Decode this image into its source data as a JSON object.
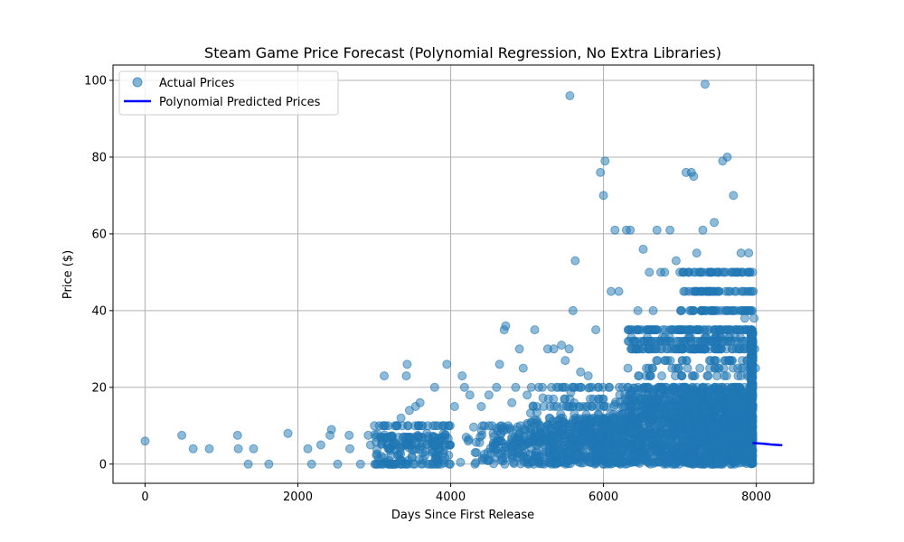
{
  "chart_data": {
    "type": "scatter",
    "title": "Steam Game Price Forecast (Polynomial Regression, No Extra Libraries)",
    "xlabel": "Days Since First Release",
    "ylabel": "Price ($)",
    "xlim": [
      -420,
      8750
    ],
    "ylim": [
      -5,
      104
    ],
    "xticks": [
      0,
      2000,
      4000,
      6000,
      8000
    ],
    "yticks": [
      0,
      20,
      40,
      60,
      80,
      100
    ],
    "grid": true,
    "legend_placement": "top-left",
    "colors": {
      "scatter": "#1f77b4",
      "line": "#0000ff"
    },
    "series": [
      {
        "name": "Actual Prices",
        "kind": "scatter",
        "points": [
          [
            0,
            6
          ],
          [
            480,
            7.5
          ],
          [
            630,
            4
          ],
          [
            840,
            4
          ],
          [
            1210,
            7.5
          ],
          [
            1220,
            4
          ],
          [
            1350,
            0
          ],
          [
            1420,
            4
          ],
          [
            1620,
            0
          ],
          [
            1870,
            8
          ],
          [
            2130,
            4
          ],
          [
            2180,
            0
          ],
          [
            2300,
            5
          ],
          [
            2420,
            7.5
          ],
          [
            2440,
            9
          ],
          [
            2520,
            0
          ],
          [
            2670,
            7.5
          ],
          [
            2680,
            4
          ],
          [
            2820,
            0
          ],
          [
            2920,
            7.5
          ],
          [
            2950,
            5
          ],
          [
            3020,
            0
          ],
          [
            3130,
            23
          ],
          [
            3180,
            4
          ],
          [
            3260,
            0
          ],
          [
            3300,
            10
          ],
          [
            3350,
            12
          ],
          [
            3420,
            23
          ],
          [
            3430,
            26
          ],
          [
            3460,
            14
          ],
          [
            3540,
            15
          ],
          [
            3600,
            16
          ],
          [
            3700,
            0
          ],
          [
            3790,
            20
          ],
          [
            3830,
            10
          ],
          [
            3950,
            26
          ],
          [
            3980,
            0
          ],
          [
            4050,
            15
          ],
          [
            4150,
            23
          ],
          [
            4180,
            20
          ],
          [
            4250,
            18
          ],
          [
            4400,
            15
          ],
          [
            4500,
            18
          ],
          [
            4600,
            20
          ],
          [
            4640,
            26
          ],
          [
            4700,
            35
          ],
          [
            4720,
            36
          ],
          [
            4800,
            16
          ],
          [
            4850,
            20
          ],
          [
            4900,
            30
          ],
          [
            4950,
            25
          ],
          [
            5000,
            18
          ],
          [
            5100,
            35
          ],
          [
            5200,
            20
          ],
          [
            5270,
            30
          ],
          [
            5350,
            30
          ],
          [
            5450,
            31
          ],
          [
            5500,
            27
          ],
          [
            5550,
            30
          ],
          [
            5560,
            96
          ],
          [
            5600,
            40
          ],
          [
            5630,
            53
          ],
          [
            5700,
            24
          ],
          [
            5800,
            23
          ],
          [
            5850,
            20
          ],
          [
            5900,
            35
          ],
          [
            5960,
            76
          ],
          [
            6000,
            70
          ],
          [
            6020,
            79
          ],
          [
            6100,
            45
          ],
          [
            6150,
            61
          ],
          [
            6200,
            45
          ],
          [
            6300,
            61
          ],
          [
            6350,
            61
          ],
          [
            6450,
            40
          ],
          [
            6520,
            56
          ],
          [
            6600,
            50
          ],
          [
            6650,
            40
          ],
          [
            6700,
            61
          ],
          [
            6750,
            50
          ],
          [
            6800,
            50
          ],
          [
            6870,
            61
          ],
          [
            6950,
            53
          ],
          [
            7000,
            50
          ],
          [
            7080,
            76
          ],
          [
            7150,
            76
          ],
          [
            7180,
            75
          ],
          [
            7200,
            50
          ],
          [
            7220,
            55
          ],
          [
            7300,
            61
          ],
          [
            7330,
            99
          ],
          [
            7400,
            45
          ],
          [
            7450,
            63
          ],
          [
            7500,
            40
          ],
          [
            7560,
            79
          ],
          [
            7620,
            80
          ],
          [
            7700,
            70
          ],
          [
            7750,
            50
          ],
          [
            7800,
            55
          ],
          [
            7850,
            38
          ],
          [
            7900,
            55
          ],
          [
            7950,
            50
          ],
          [
            7960,
            45
          ],
          [
            7970,
            38
          ],
          [
            7980,
            30
          ],
          [
            7990,
            25
          ]
        ]
      },
      {
        "name": "Polynomial Predicted Prices",
        "kind": "line",
        "x": [
          7950,
          8100,
          8200,
          8340
        ],
        "y": [
          5.5,
          5.3,
          5.1,
          4.9
        ]
      }
    ]
  }
}
